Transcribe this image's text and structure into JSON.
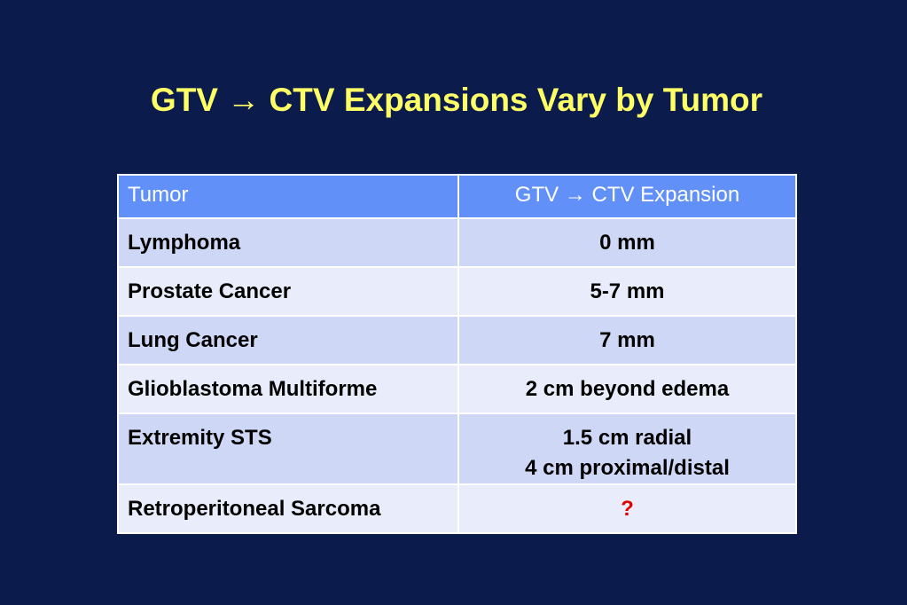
{
  "header": {
    "title": "GTV → CTV Expansions Vary by Tumor"
  },
  "table": {
    "columns": [
      "Tumor",
      "GTV → CTV Expansion"
    ],
    "rows": [
      [
        "Lymphoma",
        [
          "0 mm"
        ]
      ],
      [
        "Prostate Cancer",
        [
          "5-7 mm"
        ]
      ],
      [
        "Lung Cancer",
        [
          "7 mm"
        ]
      ],
      [
        "Glioblastoma Multiforme",
        [
          "2 cm beyond edema"
        ]
      ],
      [
        "Extremity STS",
        [
          "1.5 cm radial",
          "4 cm proximal/distal"
        ]
      ],
      [
        "Retroperitoneal Sarcoma",
        [
          "?"
        ]
      ]
    ]
  }
}
